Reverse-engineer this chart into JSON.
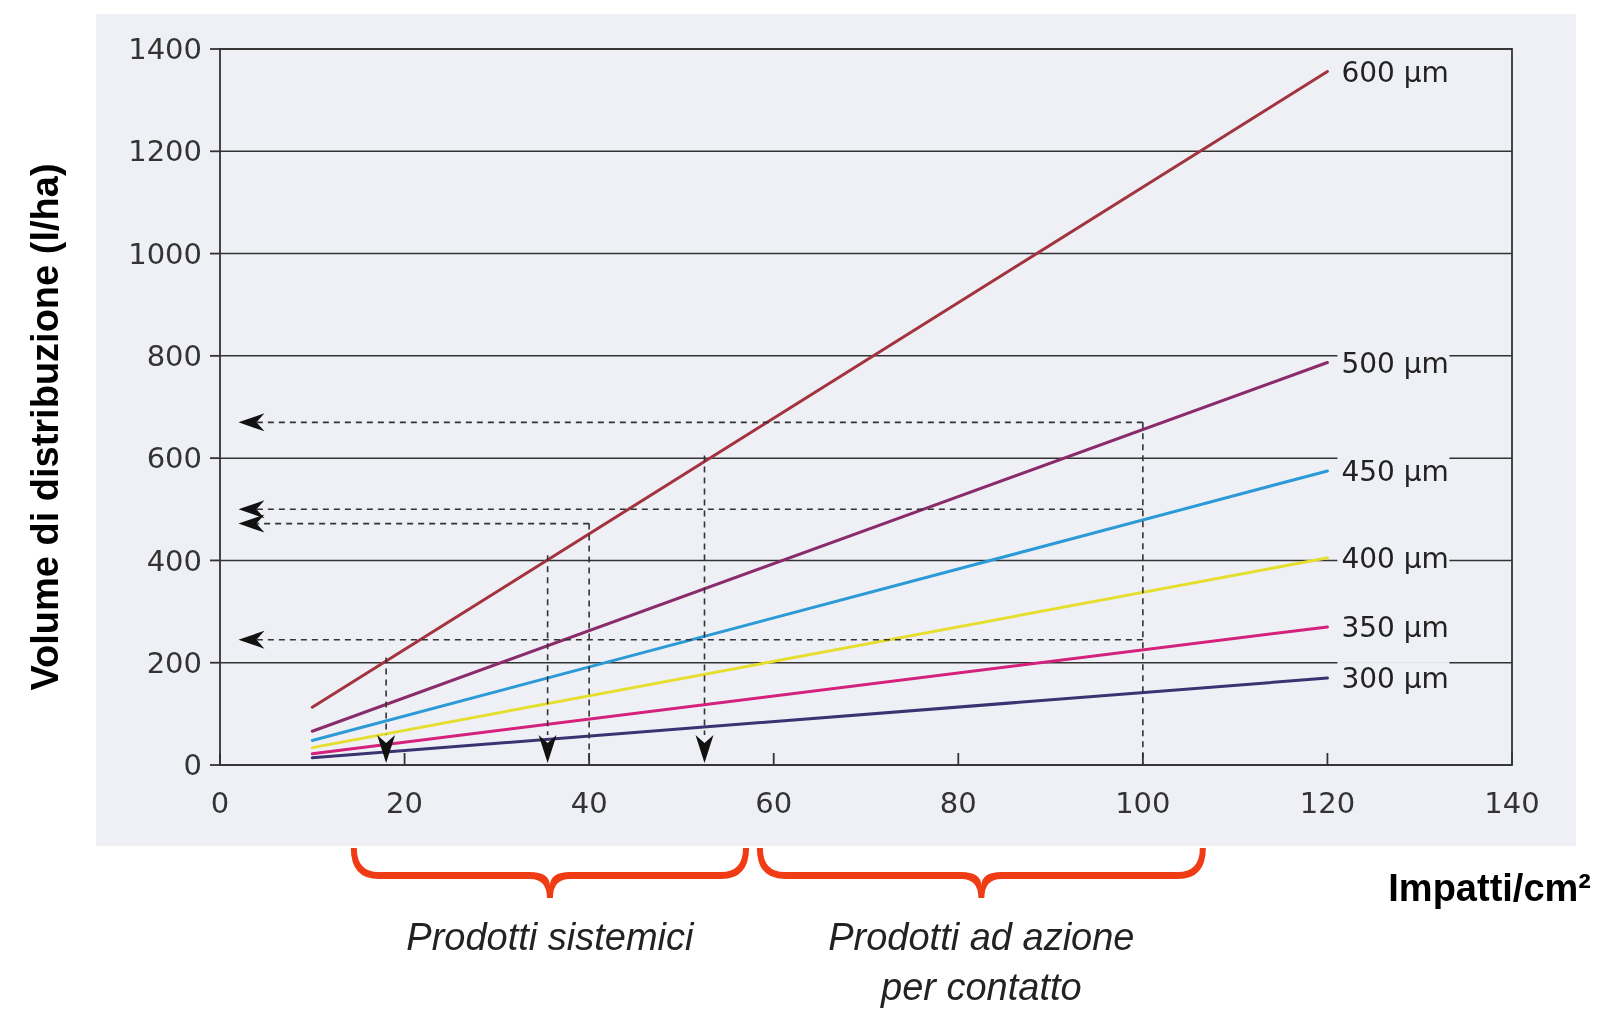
{
  "chart_data": {
    "type": "line",
    "xlabel": "Impatti/cm²",
    "ylabel": "Volume di distribuzione (l/ha)",
    "x": [
      10,
      120
    ],
    "xlim": [
      0,
      140
    ],
    "xticks": [
      0,
      20,
      40,
      60,
      80,
      100,
      120,
      140
    ],
    "ylim": [
      0,
      1400
    ],
    "yticks": [
      0,
      200,
      400,
      600,
      800,
      1000,
      1200,
      1400
    ],
    "grid": "y",
    "marker": "none",
    "line_style": "solid",
    "series": [
      {
        "name": "600 μm",
        "color": "#a3343f",
        "values": [
          113,
          1356
        ]
      },
      {
        "name": "500 μm",
        "color": "#8a2c6c",
        "values": [
          66,
          787
        ]
      },
      {
        "name": "450 μm",
        "color": "#2b9ad6",
        "values": [
          48,
          575
        ]
      },
      {
        "name": "400 μm",
        "color": "#e6de2e",
        "values": [
          34,
          405
        ]
      },
      {
        "name": "350 μm",
        "color": "#d3217c",
        "values": [
          22,
          270
        ]
      },
      {
        "name": "300 μm",
        "color": "#3b3272",
        "values": [
          14,
          170
        ]
      }
    ],
    "annotations": [
      "Prodotti sistemici",
      "Prodotti ad azione per contatto"
    ]
  }
}
